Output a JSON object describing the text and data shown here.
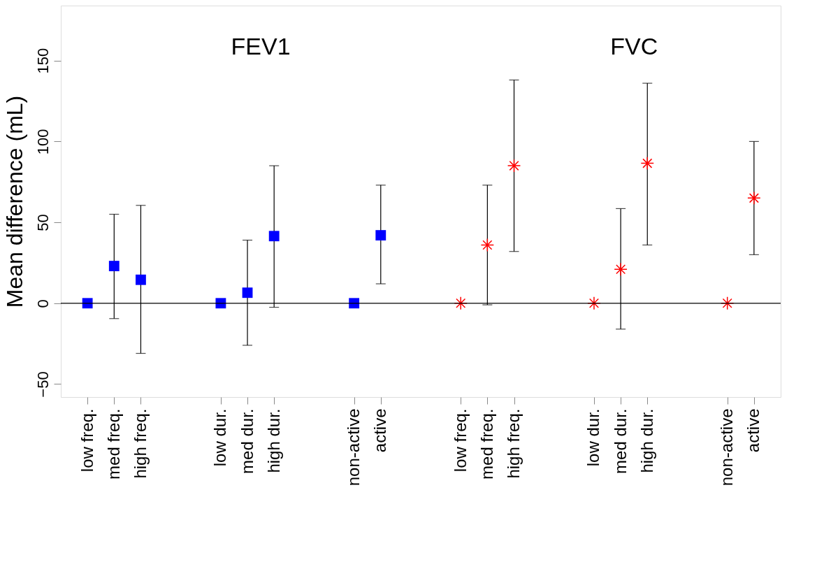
{
  "chart_data": {
    "type": "scatter",
    "ylabel": "Mean difference (mL)",
    "categories": [
      "low freq.",
      "med freq.",
      "high freq.",
      null,
      null,
      "low dur.",
      "med dur.",
      "high dur.",
      null,
      null,
      "non-active",
      "active",
      null,
      null,
      "low freq.",
      "med freq.",
      "high freq.",
      null,
      null,
      "low dur.",
      "med dur.",
      "high dur.",
      null,
      null,
      "non-active",
      "active"
    ],
    "ylim": [
      -58,
      184
    ],
    "yticks": [
      -50,
      0,
      50,
      100,
      150
    ],
    "grid": false,
    "annotations": [
      "FEV1",
      "FVC"
    ],
    "ref_lines": [
      {
        "axis": "y",
        "value": 0,
        "color": "#000000"
      }
    ],
    "series": [
      {
        "color": "#0000ff",
        "marker": "square",
        "values": [
          0,
          23,
          14.5,
          null,
          null,
          0,
          6.5,
          41.5,
          null,
          null,
          0,
          42,
          null,
          null,
          null,
          null,
          null,
          null,
          null,
          null,
          null,
          null,
          null,
          null,
          null,
          null
        ],
        "errors": [
          null,
          [
            -9.5,
            55
          ],
          [
            -31,
            60.5
          ],
          null,
          null,
          null,
          [
            -26,
            39
          ],
          [
            -2.5,
            85
          ],
          null,
          null,
          null,
          [
            12,
            73
          ],
          null,
          null,
          null,
          null,
          null,
          null,
          null,
          null,
          null,
          null,
          null,
          null,
          null,
          null
        ]
      },
      {
        "color": "#ff0000",
        "marker": "cross",
        "values": [
          null,
          null,
          null,
          null,
          null,
          null,
          null,
          null,
          null,
          null,
          null,
          null,
          null,
          null,
          0,
          36,
          85,
          null,
          null,
          0,
          21,
          86.5,
          null,
          null,
          0,
          65
        ],
        "errors": [
          null,
          null,
          null,
          null,
          null,
          null,
          null,
          null,
          null,
          null,
          null,
          null,
          null,
          null,
          null,
          [
            -1,
            73
          ],
          [
            32,
            138
          ],
          null,
          null,
          null,
          [
            -16,
            58.5
          ],
          [
            36,
            136
          ],
          null,
          null,
          null,
          [
            30,
            100
          ]
        ]
      }
    ]
  }
}
